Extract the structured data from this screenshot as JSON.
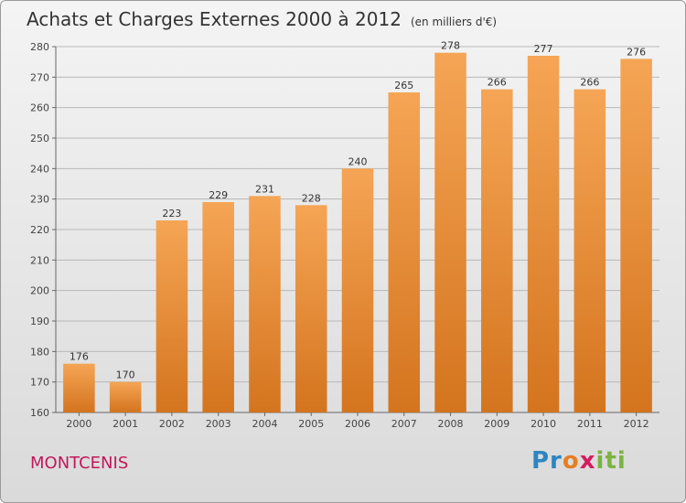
{
  "chart_data": {
    "type": "bar",
    "title": "Achats et Charges Externes 2000 à 2012",
    "subtitle": "(en milliers d'€)",
    "categories": [
      "2000",
      "2001",
      "2002",
      "2003",
      "2004",
      "2005",
      "2006",
      "2007",
      "2008",
      "2009",
      "2010",
      "2011",
      "2012"
    ],
    "values": [
      176,
      170,
      223,
      229,
      231,
      228,
      240,
      265,
      278,
      266,
      277,
      266,
      276
    ],
    "ylim": [
      160,
      280
    ],
    "yticks": [
      160,
      170,
      180,
      190,
      200,
      210,
      220,
      230,
      240,
      250,
      260,
      270,
      280
    ],
    "grid": true,
    "bar_color_top": "#f5a555",
    "bar_color_bottom": "#d4741e"
  },
  "location_label": "MONTCENIS",
  "logo": {
    "text": "Proxiti"
  }
}
